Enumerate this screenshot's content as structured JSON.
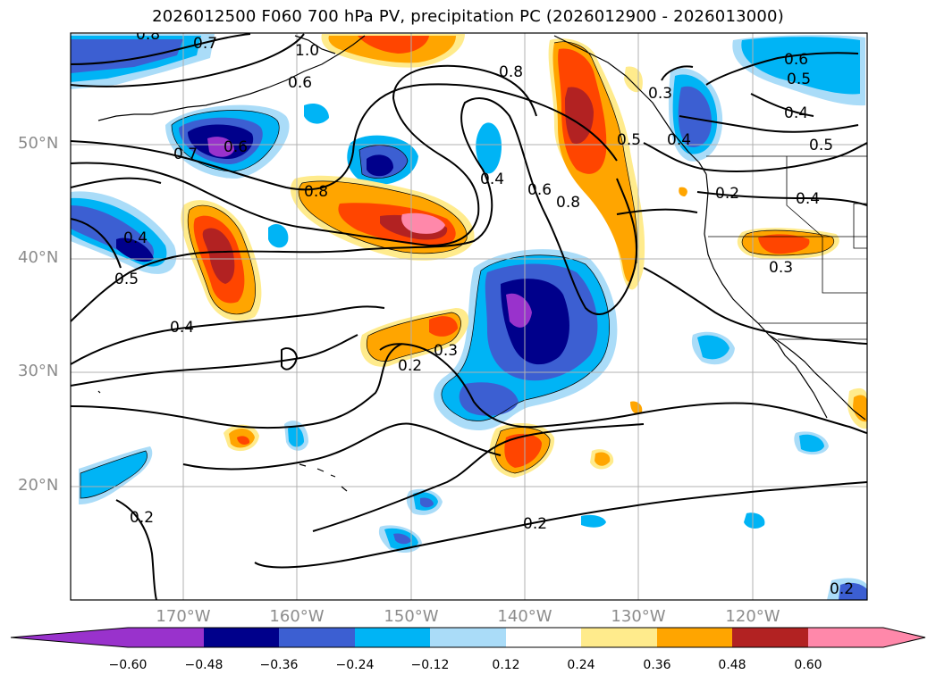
{
  "title": "2026012500 F060 700 hPa PV, precipitation PC (2026012900 - 2026013000)",
  "latitude_labels": [
    "50°N",
    "40°N",
    "30°N",
    "20°N"
  ],
  "longitude_labels": [
    "170°W",
    "160°W",
    "150°W",
    "140°W",
    "130°W",
    "120°W"
  ],
  "contour_labels": [
    "0.8",
    "0.7",
    "1.0",
    "0.6",
    "0.7",
    "0.8",
    "0.8",
    "0.4",
    "0.6",
    "0.8",
    "0.5",
    "0.3",
    "0.6",
    "0.5",
    "0.4",
    "0.5",
    "0.4",
    "0.2",
    "0.5",
    "0.4",
    "0.3",
    "0.4",
    "0.3",
    "0.2",
    "0.2",
    "0.2",
    "0.2",
    "0.4",
    "0.6"
  ],
  "colorbar": {
    "ticks": [
      "−0.60",
      "−0.48",
      "−0.36",
      "−0.24",
      "−0.12",
      "0.12",
      "0.24",
      "0.36",
      "0.48",
      "0.60"
    ],
    "colors": [
      "#9932cc",
      "#00008b",
      "#3c5fd2",
      "#00b4f5",
      "#aadcf8",
      "#ffffff",
      "#ffeb8c",
      "#ffa500",
      "#ff4500",
      "#b22222",
      "#ff88aa",
      "#ff88aa"
    ],
    "extend": "both"
  }
}
